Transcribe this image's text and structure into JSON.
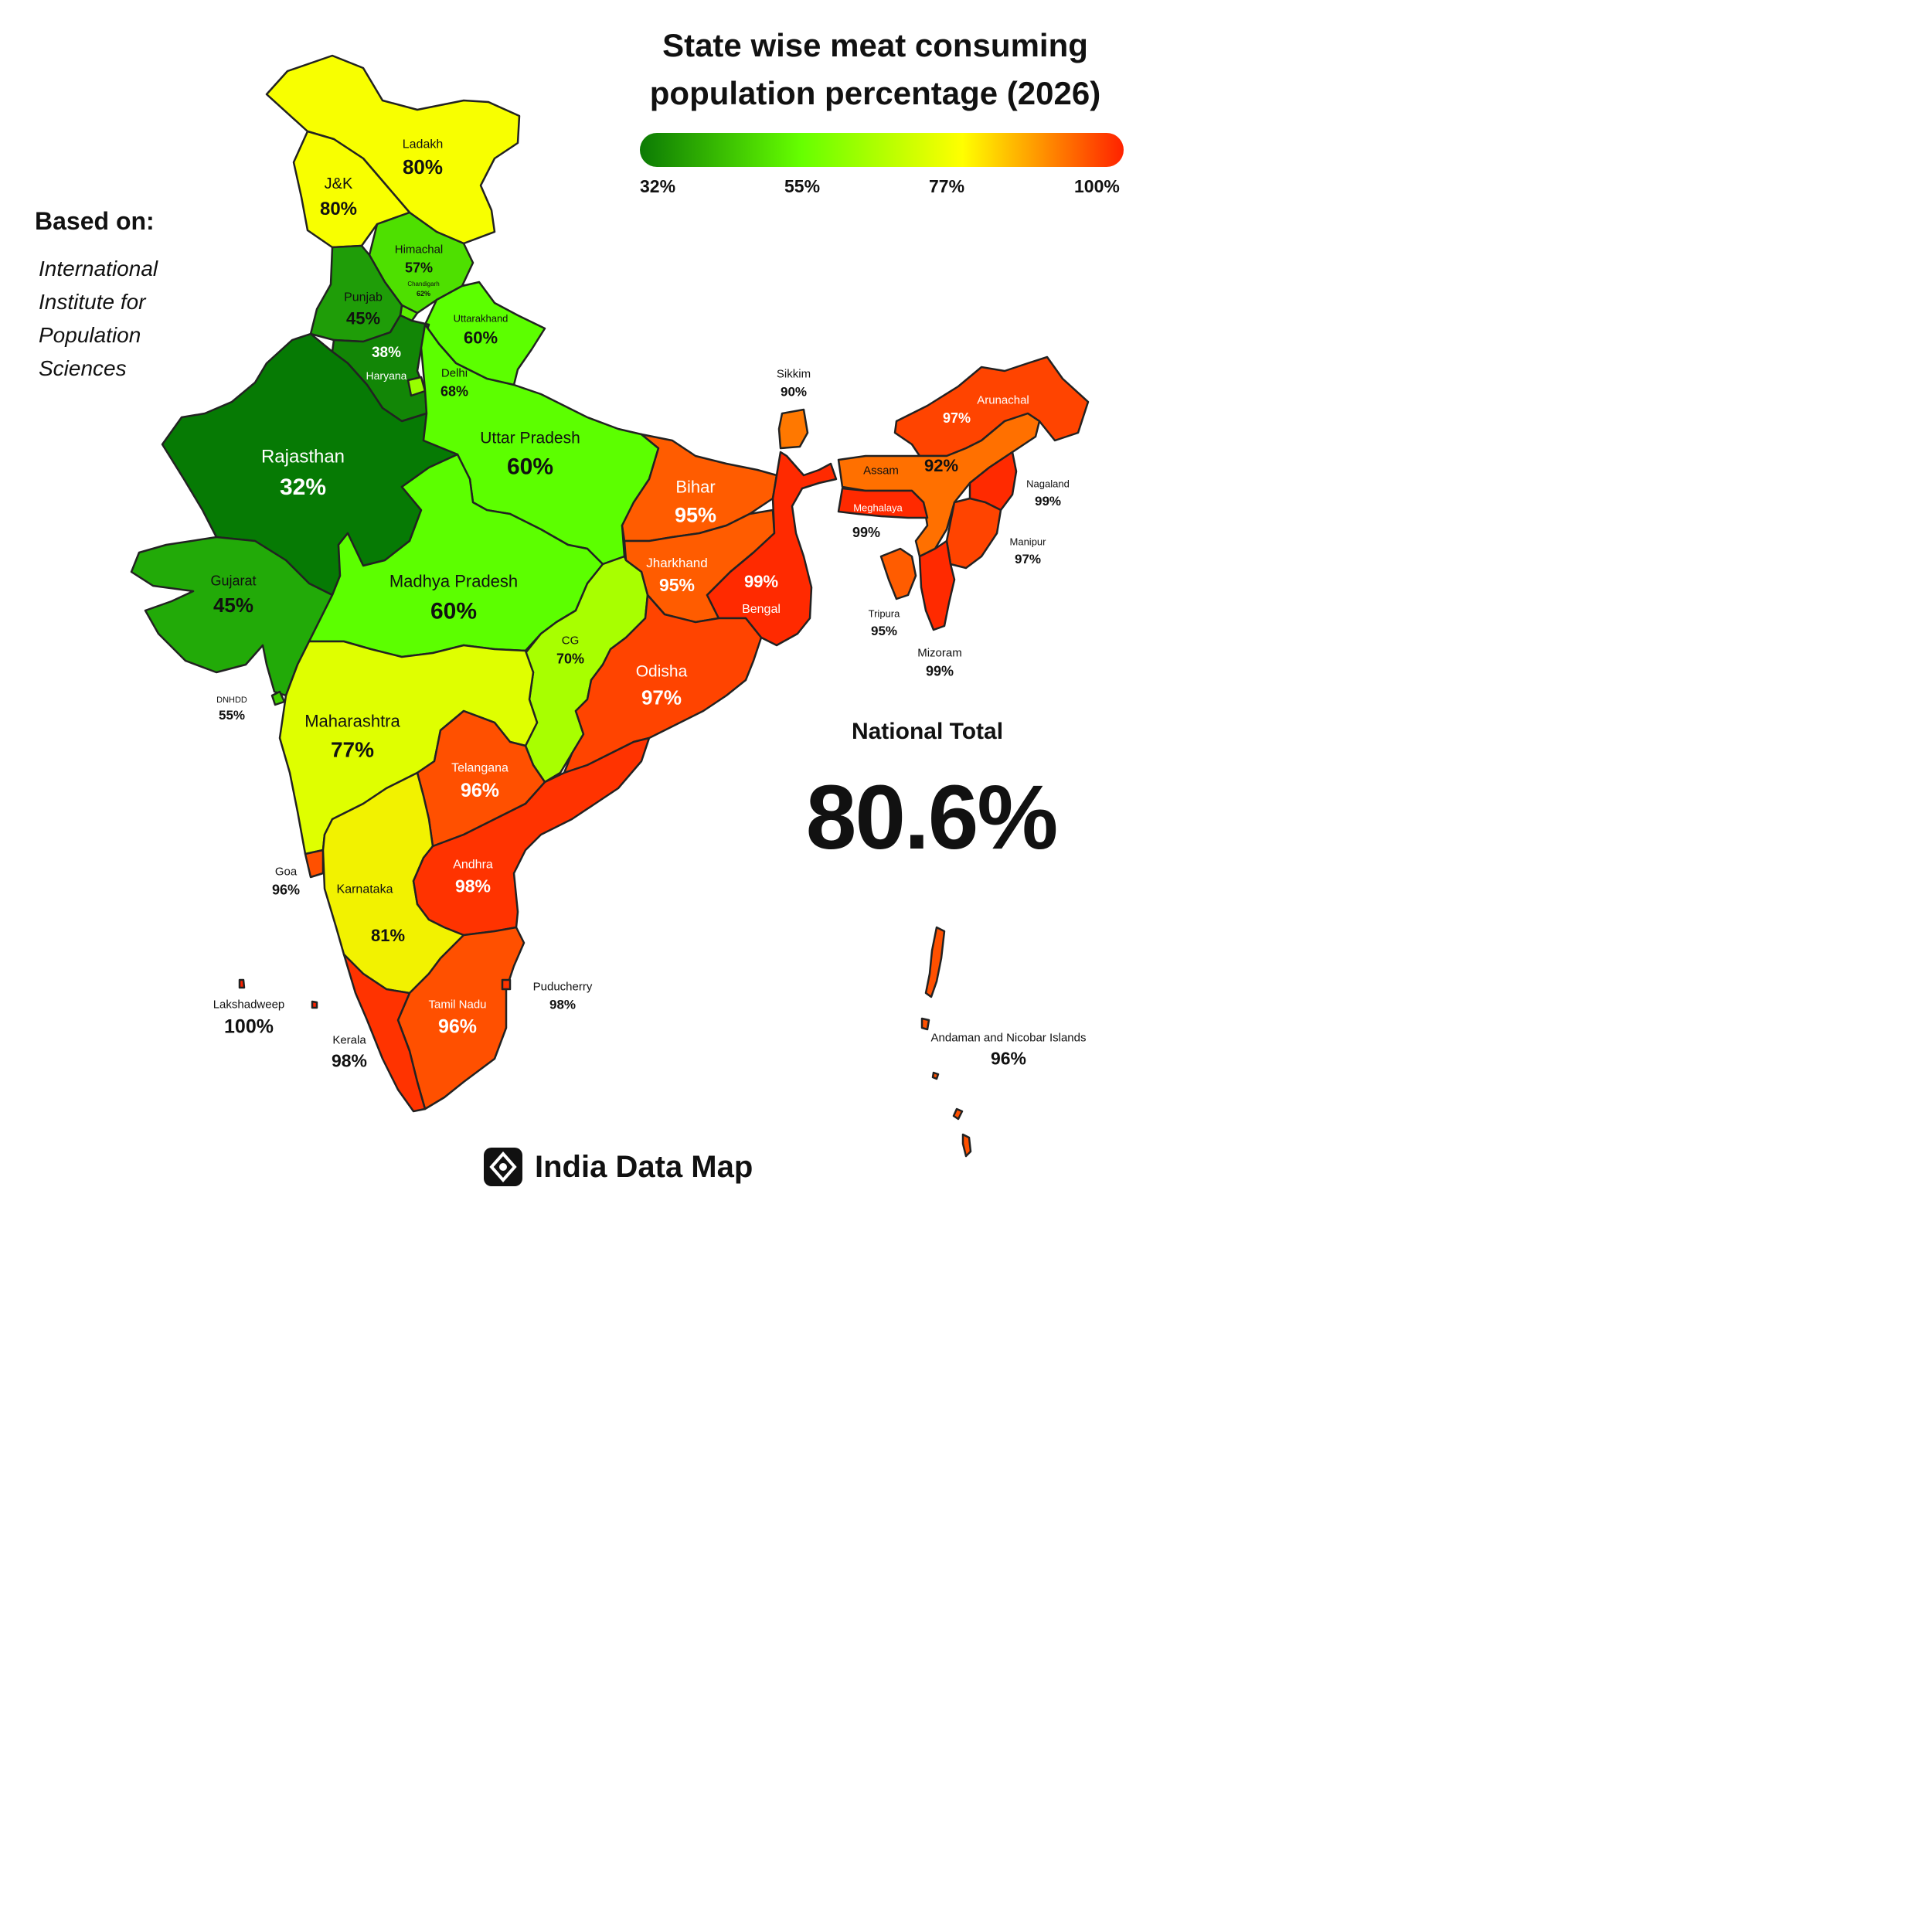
{
  "title_line1": "State wise meat consuming",
  "title_line2": "population percentage (2026)",
  "legend": {
    "ticks": [
      "32%",
      "55%",
      "77%",
      "100%"
    ],
    "min": 32,
    "max": 100,
    "colors": [
      "#0c7a04",
      "#66ff00",
      "#ffff00",
      "#ff2200"
    ]
  },
  "based_on_label": "Based on:",
  "source": [
    "International",
    "Institute for",
    "Population",
    "Sciences"
  ],
  "national_total_label": "National Total",
  "national_total_value": "80.6%",
  "brand": "India Data Map",
  "regions": [
    {
      "id": "ladakh",
      "name": "Ladakh",
      "value": "80%",
      "color": "#f8ff00"
    },
    {
      "id": "jk",
      "name": "J&K",
      "value": "80%",
      "color": "#f8ff00"
    },
    {
      "id": "himachal",
      "name": "Himachal",
      "value": "57%",
      "color": "#4ee000"
    },
    {
      "id": "chandigarh",
      "name": "Chandigarh",
      "value": "62%",
      "color": "#5bee00"
    },
    {
      "id": "punjab",
      "name": "Punjab",
      "value": "45%",
      "color": "#1f9d08"
    },
    {
      "id": "uttarakhand",
      "name": "Uttarakhand",
      "value": "60%",
      "color": "#5cff00"
    },
    {
      "id": "haryana",
      "name": "Haryana",
      "value": "38%",
      "color": "#128606"
    },
    {
      "id": "delhi",
      "name": "Delhi",
      "value": "68%",
      "color": "#98ff00"
    },
    {
      "id": "rajasthan",
      "name": "Rajasthan",
      "value": "32%",
      "color": "#067a04"
    },
    {
      "id": "up",
      "name": "Uttar Pradesh",
      "value": "60%",
      "color": "#5cff00"
    },
    {
      "id": "gujarat",
      "name": "Gujarat",
      "value": "45%",
      "color": "#22aa08"
    },
    {
      "id": "mp",
      "name": "Madhya Pradesh",
      "value": "60%",
      "color": "#5cff00"
    },
    {
      "id": "bihar",
      "name": "Bihar",
      "value": "95%",
      "color": "#ff5c00"
    },
    {
      "id": "jharkhand",
      "name": "Jharkhand",
      "value": "95%",
      "color": "#ff5c00"
    },
    {
      "id": "bengal",
      "name": "Bengal",
      "value": "99%",
      "color": "#ff2a00"
    },
    {
      "id": "cg",
      "name": "CG",
      "value": "70%",
      "color": "#a8ff00"
    },
    {
      "id": "odisha",
      "name": "Odisha",
      "value": "97%",
      "color": "#ff4400"
    },
    {
      "id": "dnhdd",
      "name": "DNHDD",
      "value": "55%",
      "color": "#40cc00"
    },
    {
      "id": "maharashtra",
      "name": "Maharashtra",
      "value": "77%",
      "color": "#dfff00"
    },
    {
      "id": "telangana",
      "name": "Telangana",
      "value": "96%",
      "color": "#ff5000"
    },
    {
      "id": "goa",
      "name": "Goa",
      "value": "96%",
      "color": "#ff5000"
    },
    {
      "id": "karnataka",
      "name": "Karnataka",
      "value": "81%",
      "color": "#f2f200"
    },
    {
      "id": "andhra",
      "name": "Andhra",
      "value": "98%",
      "color": "#ff3300"
    },
    {
      "id": "tamilnadu",
      "name": "Tamil Nadu",
      "value": "96%",
      "color": "#ff5000"
    },
    {
      "id": "puducherry",
      "name": "Puducherry",
      "value": "98%",
      "color": "#ff3300"
    },
    {
      "id": "kerala",
      "name": "Kerala",
      "value": "98%",
      "color": "#ff3300"
    },
    {
      "id": "lakshadweep",
      "name": "Lakshadweep",
      "value": "100%",
      "color": "#ff2200"
    },
    {
      "id": "sikkim",
      "name": "Sikkim",
      "value": "90%",
      "color": "#ff7800"
    },
    {
      "id": "arunachal",
      "name": "Arunachal",
      "value": "97%",
      "color": "#ff4400"
    },
    {
      "id": "assam",
      "name": "Assam",
      "value": "92%",
      "color": "#ff7000"
    },
    {
      "id": "meghalaya",
      "name": "Meghalaya",
      "value": "99%",
      "color": "#ff2a00"
    },
    {
      "id": "nagaland",
      "name": "Nagaland",
      "value": "99%",
      "color": "#ff2a00"
    },
    {
      "id": "manipur",
      "name": "Manipur",
      "value": "97%",
      "color": "#ff4400"
    },
    {
      "id": "tripura",
      "name": "Tripura",
      "value": "95%",
      "color": "#ff5c00"
    },
    {
      "id": "mizoram",
      "name": "Mizoram",
      "value": "99%",
      "color": "#ff2a00"
    },
    {
      "id": "andaman",
      "name": "Andaman and Nicobar Islands",
      "value": "96%",
      "color": "#ff5000"
    }
  ]
}
